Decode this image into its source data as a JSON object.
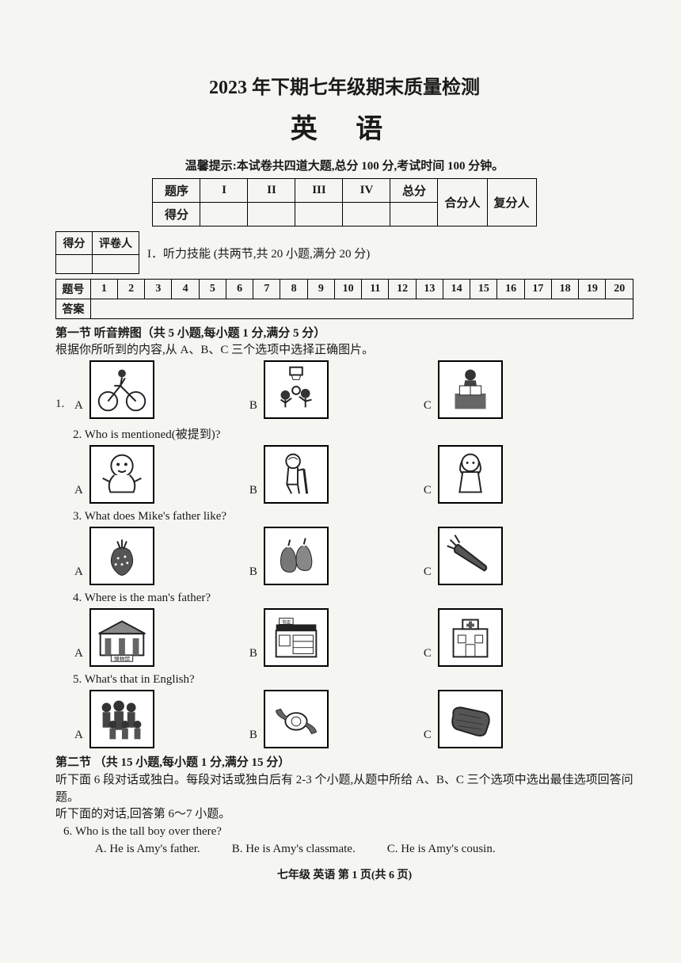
{
  "header": {
    "title1": "2023 年下期七年级期末质量检测",
    "title2": "英  语",
    "hint": "温馨提示:本试卷共四道大题,总分 100 分,考试时间 100 分钟。"
  },
  "score_table": {
    "row1": [
      "题序",
      "I",
      "II",
      "III",
      "IV",
      "总分",
      "合分人",
      "复分人"
    ],
    "row2_label": "得分"
  },
  "grader": {
    "c1": "得分",
    "c2": "评卷人",
    "section": "I．听力技能 (共两节,共 20 小题,满分 20 分)"
  },
  "answer_grid": {
    "row1_label": "题号",
    "nums": [
      "1",
      "2",
      "3",
      "4",
      "5",
      "6",
      "7",
      "8",
      "9",
      "10",
      "11",
      "12",
      "13",
      "14",
      "15",
      "16",
      "17",
      "18",
      "19",
      "20"
    ],
    "row2_label": "答案"
  },
  "section1": {
    "head": "第一节  听音辨图（共 5 小题,每小题 1 分,满分 5 分）",
    "instr": "根据你所听到的内容,从 A、B、C 三个选项中选择正确图片。"
  },
  "questions": [
    {
      "num": "1.",
      "text": "",
      "icons": [
        "bicycle",
        "basketball",
        "reading"
      ]
    },
    {
      "num": "2.",
      "text": "Who is mentioned(被提到)?",
      "icons": [
        "baby",
        "oldman",
        "girl"
      ]
    },
    {
      "num": "3.",
      "text": "What does Mike's father like?",
      "icons": [
        "strawberry",
        "pears",
        "carrot"
      ]
    },
    {
      "num": "4.",
      "text": "Where is the man's father?",
      "icons": [
        "museum",
        "shop",
        "hospital"
      ]
    },
    {
      "num": "5.",
      "text": "What's that in English?",
      "icons": [
        "family",
        "watch",
        "bread"
      ]
    }
  ],
  "opt_labels": [
    "A",
    "B",
    "C"
  ],
  "section2": {
    "head": "第二节 （共 15 小题,每小题 1 分,满分 15 分）",
    "line1": "听下面 6 段对话或独白。每段对话或独白后有 2-3 个小题,从题中所给 A、B、C 三个选项中选出最佳选项回答问题。",
    "line2": "听下面的对话,回答第 6～7 小题。"
  },
  "q6": {
    "num": "6.",
    "text": "Who is the tall boy over there?",
    "opts": [
      "A.  He is Amy's father.",
      "B.  He is Amy's classmate.",
      "C.  He is Amy's cousin."
    ]
  },
  "footer": "七年级  英语  第 1 页(共 6 页)"
}
